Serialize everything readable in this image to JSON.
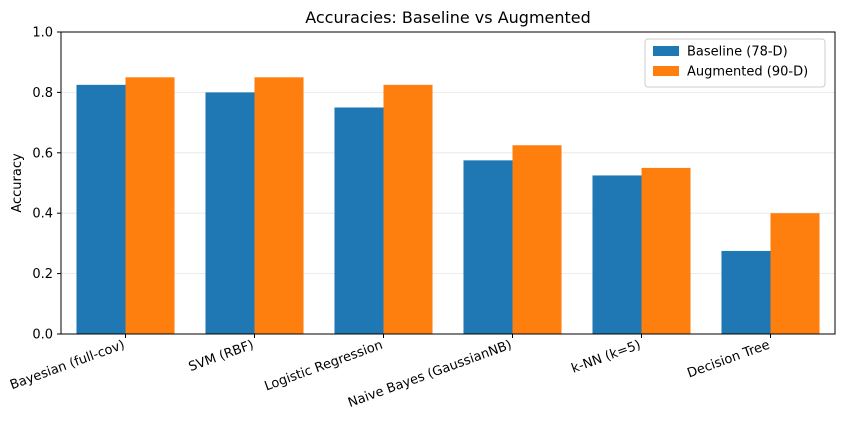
{
  "chart_data": {
    "type": "bar",
    "title": "Accuracies: Baseline vs Augmented",
    "xlabel": "",
    "ylabel": "Accuracy",
    "ylim": [
      0,
      1.0
    ],
    "yticks": [
      "0.0",
      "0.2",
      "0.4",
      "0.6",
      "0.8",
      "1.0"
    ],
    "grid": "y",
    "legend_position": "top-right",
    "categories": [
      "Bayesian (full-cov)",
      "SVM (RBF)",
      "Logistic Regression",
      "Naive Bayes (GaussianNB)",
      "k-NN (k=5)",
      "Decision Tree"
    ],
    "series": [
      {
        "name": "Baseline (78-D)",
        "color": "#1f77b4",
        "values": [
          0.825,
          0.8,
          0.75,
          0.575,
          0.525,
          0.275
        ]
      },
      {
        "name": "Augmented (90-D)",
        "color": "#ff7f0e",
        "values": [
          0.85,
          0.85,
          0.825,
          0.625,
          0.55,
          0.4
        ]
      }
    ]
  }
}
